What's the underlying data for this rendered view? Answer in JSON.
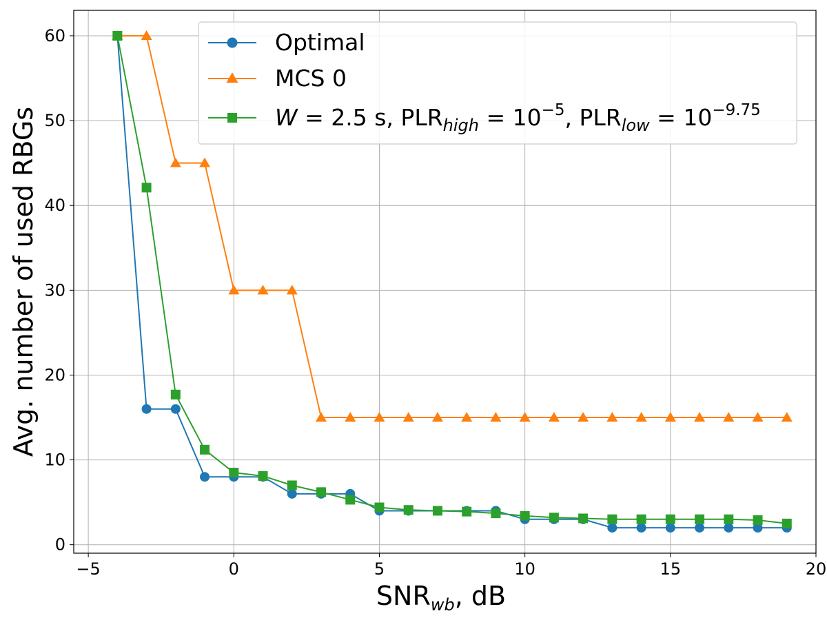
{
  "chart_data": {
    "type": "line",
    "xlabel": {
      "main": "SNR",
      "sub": "wb",
      "suffix": ", dB"
    },
    "ylabel": "Avg. number of used RBGs",
    "xlim": [
      -5.5,
      20
    ],
    "ylim": [
      -1,
      63
    ],
    "xticks": [
      -5,
      0,
      5,
      10,
      15,
      20
    ],
    "xtick_labels": [
      "−5",
      "0",
      "5",
      "10",
      "15",
      "20"
    ],
    "yticks": [
      0,
      10,
      20,
      30,
      40,
      50,
      60
    ],
    "ytick_labels": [
      "0",
      "10",
      "20",
      "30",
      "40",
      "50",
      "60"
    ],
    "grid": true,
    "legend_position": "top-right",
    "x": [
      -4,
      -3,
      -2,
      -1,
      0,
      1,
      2,
      3,
      4,
      5,
      6,
      7,
      8,
      9,
      10,
      11,
      12,
      13,
      14,
      15,
      16,
      17,
      18,
      19
    ],
    "series": [
      {
        "name": "Optimal",
        "marker": "circle",
        "color": "#1f77b4",
        "values": [
          60,
          16,
          16,
          8,
          8,
          8,
          6,
          6,
          6,
          4,
          4,
          4,
          4,
          4,
          3,
          3,
          3,
          2,
          2,
          2,
          2,
          2,
          2,
          2
        ]
      },
      {
        "name": "MCS 0",
        "marker": "triangle",
        "color": "#ff7f0e",
        "values": [
          60,
          60,
          45,
          45,
          30,
          30,
          30,
          15,
          15,
          15,
          15,
          15,
          15,
          15,
          15,
          15,
          15,
          15,
          15,
          15,
          15,
          15,
          15,
          15
        ]
      },
      {
        "name": "W = 2.5 s, PLR_high = 10^-5, PLR_low = 10^-9.75",
        "name_parts": {
          "w": "W",
          "w_value": " = 2.5 s, PLR",
          "sub1": "high",
          "eq1": " = 10",
          "sup1": "−5",
          "mid": ", PLR",
          "sub2": "low",
          "eq2": " = 10",
          "sup2": "−9.75"
        },
        "marker": "square",
        "color": "#2ca02c",
        "values": [
          60,
          42.1,
          17.7,
          11.2,
          8.5,
          8.1,
          7.0,
          6.2,
          5.3,
          4.4,
          4.1,
          4.0,
          3.9,
          3.7,
          3.4,
          3.2,
          3.1,
          3.0,
          3.0,
          3.0,
          3.0,
          3.0,
          2.9,
          2.5
        ]
      }
    ]
  }
}
